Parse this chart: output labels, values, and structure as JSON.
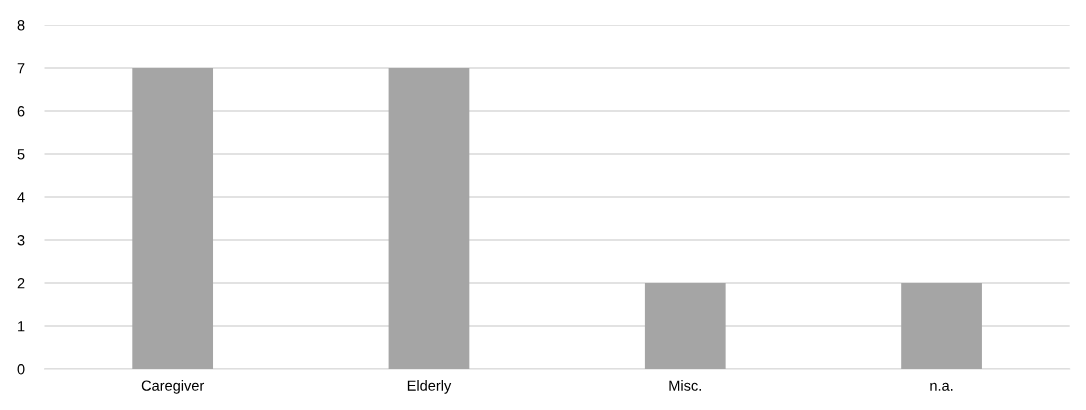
{
  "chart_data": {
    "type": "bar",
    "categories": [
      "Caregiver",
      "Elderly",
      "Misc.",
      "n.a."
    ],
    "values": [
      7,
      7,
      2,
      2
    ],
    "color": "#a5a5a5",
    "ylim": [
      0,
      8
    ],
    "yticks": [
      0,
      1,
      2,
      3,
      4,
      5,
      6,
      7,
      8
    ],
    "grid": "y"
  }
}
